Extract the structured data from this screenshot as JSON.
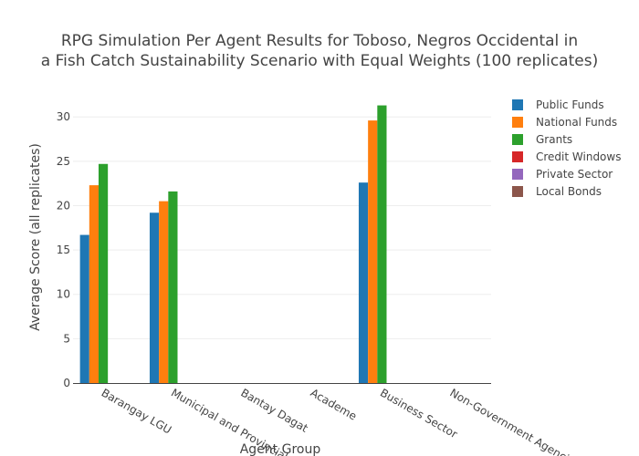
{
  "chart_data": {
    "type": "bar",
    "title_lines": [
      "RPG Simulation Per Agent Results for Toboso, Negros Occidental in",
      "a Fish Catch Sustainability Scenario with Equal Weights (100 replicates)"
    ],
    "xlabel": "Agent Group",
    "ylabel": "Average Score (all replicates)",
    "categories": [
      "Barangay LGU",
      "Municipal and Provincial",
      "Bantay Dagat",
      "Academe",
      "Business Sector",
      "Non-Government Agencies"
    ],
    "ylim": [
      0,
      32.9
    ],
    "yticks": [
      0,
      5,
      10,
      15,
      20,
      25,
      30
    ],
    "grid": true,
    "legend_position": "right",
    "series": [
      {
        "name": "Public Funds",
        "color": "#1f77b4",
        "values": [
          16.7,
          19.2,
          0,
          0,
          22.6,
          0
        ]
      },
      {
        "name": "National Funds",
        "color": "#ff7f0e",
        "values": [
          22.3,
          20.5,
          0,
          0,
          29.6,
          0
        ]
      },
      {
        "name": "Grants",
        "color": "#2ca02c",
        "values": [
          24.7,
          21.6,
          0,
          0,
          31.3,
          0
        ]
      },
      {
        "name": "Credit Windows",
        "color": "#d62728",
        "values": [
          0,
          0,
          0,
          0,
          0,
          0
        ]
      },
      {
        "name": "Private Sector",
        "color": "#9467bd",
        "values": [
          0,
          0,
          0,
          0,
          0,
          0
        ]
      },
      {
        "name": "Local Bonds",
        "color": "#8c564b",
        "values": [
          0,
          0,
          0,
          0,
          0,
          0
        ]
      }
    ]
  }
}
